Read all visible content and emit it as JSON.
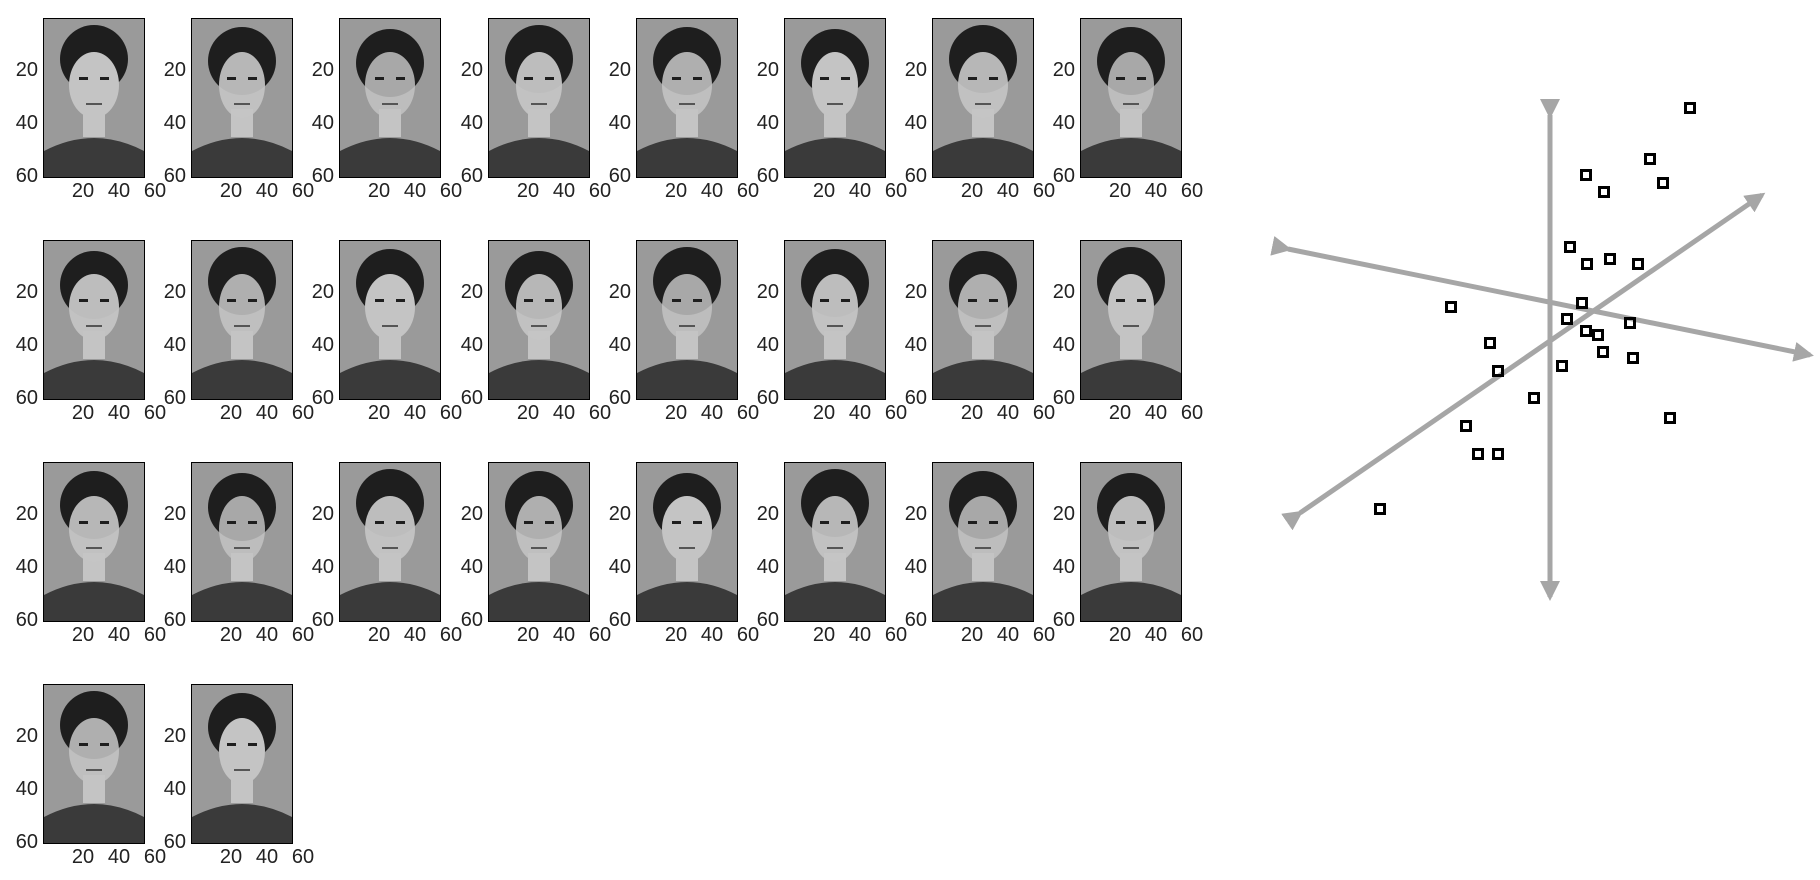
{
  "face_panels": {
    "count": 26,
    "columns": 8,
    "y_ticks": [
      "20",
      "40",
      "60"
    ],
    "x_ticks": [
      "20",
      "40",
      "60"
    ],
    "tones": {
      "background": "#9a9a9a",
      "skin": "#c4c4c4",
      "hair": "#1e1e1e",
      "clothing": "#3a3a3a",
      "frame": "#000000"
    }
  },
  "projection_plot": {
    "axis_color": "#a6a6a6",
    "marker_color": "#000000",
    "marker_count": 26
  }
}
